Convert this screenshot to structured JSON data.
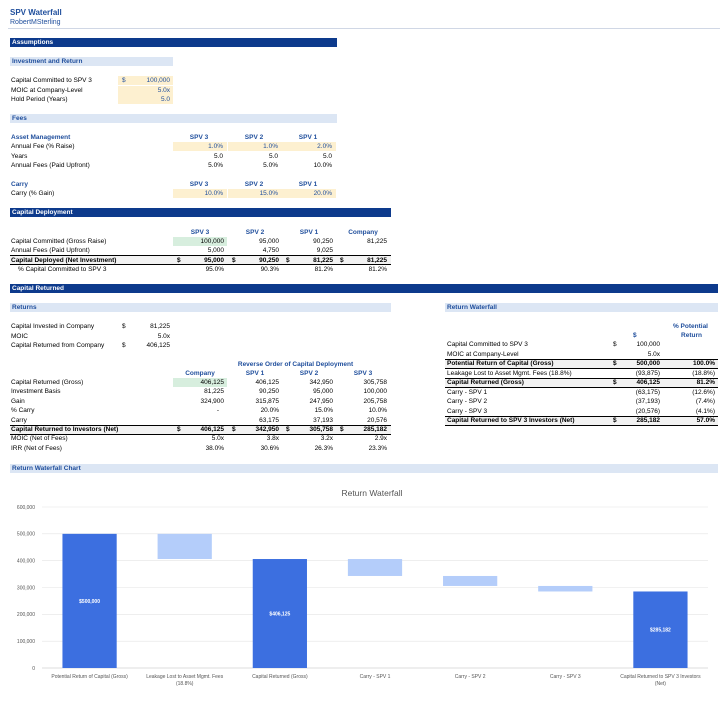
{
  "sheet": {
    "title": "SPV Waterfall",
    "author": "RobertMSterling"
  },
  "assumptions": {
    "header": "Assumptions"
  },
  "investment": {
    "header": "Investment and Return",
    "rows": [
      {
        "label": "Capital Committed to SPV 3",
        "cur": "$",
        "value": "100,000"
      },
      {
        "label": "MOIC at Company-Level",
        "cur": "",
        "value": "5.0x"
      },
      {
        "label": "Hold Period (Years)",
        "cur": "",
        "value": "5.0"
      }
    ]
  },
  "fees": {
    "header": "Fees",
    "am_title": "Asset Management",
    "cols": [
      "SPV 3",
      "SPV 2",
      "SPV 1"
    ],
    "am_rows": [
      {
        "label": "Annual Fee (% Raise)",
        "v": [
          "1.0%",
          "1.0%",
          "2.0%"
        ]
      },
      {
        "label": "Years",
        "v": [
          "5.0",
          "5.0",
          "5.0"
        ]
      },
      {
        "label": "Annual Fees (Paid Upfront)",
        "v": [
          "5.0%",
          "5.0%",
          "10.0%"
        ]
      }
    ],
    "carry_title": "Carry",
    "carry_rows": [
      {
        "label": "Carry (% Gain)",
        "v": [
          "10.0%",
          "15.0%",
          "20.0%"
        ]
      }
    ]
  },
  "deployment": {
    "header": "Capital Deployment",
    "cols": [
      "SPV 3",
      "SPV 2",
      "SPV 1",
      "Company"
    ],
    "rows": [
      {
        "label": "Capital Committed (Gross Raise)",
        "v": [
          "100,000",
          "95,000",
          "90,250",
          "81,225"
        ]
      },
      {
        "label": "Annual Fees (Paid Upfront)",
        "v": [
          "5,000",
          "4,750",
          "9,025",
          ""
        ]
      },
      {
        "label": "Capital Deployed (Net Investment)",
        "v": [
          "95,000",
          "90,250",
          "81,225",
          "81,225"
        ]
      },
      {
        "label": "% Capital Committed to SPV 3",
        "v": [
          "95.0%",
          "90.3%",
          "81.2%",
          "81.2%"
        ]
      }
    ]
  },
  "capital_returned": {
    "header": "Capital Returned"
  },
  "returns": {
    "header": "Returns",
    "top_rows": [
      {
        "label": "Capital Invested in Company",
        "cur": "$",
        "value": "81,225"
      },
      {
        "label": "MOIC",
        "cur": "",
        "value": "5.0x"
      },
      {
        "label": "Capital Returned from Company",
        "cur": "$",
        "value": "406,125"
      }
    ],
    "reverse_label": "Reverse Order of Capital Deployment",
    "cols": [
      "Company",
      "SPV 1",
      "SPV 2",
      "SPV 3"
    ],
    "rows": [
      {
        "label": "Capital Returned (Gross)",
        "v": [
          "406,125",
          "406,125",
          "342,950",
          "305,758"
        ]
      },
      {
        "label": "Investment Basis",
        "v": [
          "81,225",
          "90,250",
          "95,000",
          "100,000"
        ]
      },
      {
        "label": "Gain",
        "v": [
          "324,900",
          "315,875",
          "247,950",
          "205,758"
        ]
      },
      {
        "label": "% Carry",
        "v": [
          "-",
          "20.0%",
          "15.0%",
          "10.0%"
        ]
      },
      {
        "label": "Carry",
        "v": [
          "",
          "63,175",
          "37,193",
          "20,576"
        ]
      },
      {
        "label": "Capital Returned to Investors (Net)",
        "v": [
          "406,125",
          "342,950",
          "305,758",
          "285,182"
        ]
      },
      {
        "label": "MOIC (Net of Fees)",
        "v": [
          "5.0x",
          "3.8x",
          "3.2x",
          "2.9x"
        ]
      },
      {
        "label": "IRR (Net of Fees)",
        "v": [
          "38.0%",
          "30.6%",
          "26.3%",
          "23.3%"
        ]
      }
    ]
  },
  "waterfall": {
    "header": "Return Waterfall",
    "col_dollar": "$",
    "col_pct_1": "% Potential",
    "col_pct_2": "Return",
    "rows": [
      {
        "label": "Capital Committed to SPV 3",
        "cur": "$",
        "value": "100,000",
        "pct": ""
      },
      {
        "label": "MOIC at Company-Level",
        "cur": "",
        "value": "5.0x",
        "pct": ""
      },
      {
        "label": "Potential Return of Capital (Gross)",
        "cur": "$",
        "value": "500,000",
        "pct": "100.0%"
      },
      {
        "label": "Leakage Lost to Asset Mgmt. Fees (18.8%)",
        "cur": "",
        "value": "(93,875)",
        "pct": "(18.8%)"
      },
      {
        "label": "Capital Returned (Gross)",
        "cur": "$",
        "value": "406,125",
        "pct": "81.2%"
      },
      {
        "label": "Carry - SPV 1",
        "cur": "",
        "value": "(63,175)",
        "pct": "(12.6%)"
      },
      {
        "label": "Carry - SPV 2",
        "cur": "",
        "value": "(37,193)",
        "pct": "(7.4%)"
      },
      {
        "label": "Carry - SPV 3",
        "cur": "",
        "value": "(20,576)",
        "pct": "(4.1%)"
      },
      {
        "label": "Capital Returned to SPV 3 Investors (Net)",
        "cur": "$",
        "value": "285,182",
        "pct": "57.0%"
      }
    ]
  },
  "chart_section": {
    "header": "Return Waterfall Chart"
  },
  "chart_data": {
    "type": "bar",
    "subtype": "waterfall",
    "title": "Return Waterfall",
    "categories": [
      [
        "Potential Return of Capital (Gross)"
      ],
      [
        "Leakage Lost to Asset Mgmt. Fees",
        "(18.8%)"
      ],
      [
        "Capital Returned (Gross)"
      ],
      [
        "Carry - SPV 1"
      ],
      [
        "Carry - SPV 2"
      ],
      [
        "Carry - SPV 3"
      ],
      [
        "Capital Returned to SPV 3 Investors",
        "(Net)"
      ]
    ],
    "bars": [
      {
        "kind": "total",
        "low": 0,
        "high": 500000,
        "label": "$500,000"
      },
      {
        "kind": "decrease",
        "low": 406125,
        "high": 500000,
        "label": ""
      },
      {
        "kind": "total",
        "low": 0,
        "high": 406125,
        "label": "$406,125"
      },
      {
        "kind": "decrease",
        "low": 342950,
        "high": 406125,
        "label": ""
      },
      {
        "kind": "decrease",
        "low": 305758,
        "high": 342950,
        "label": ""
      },
      {
        "kind": "decrease",
        "low": 285182,
        "high": 305758,
        "label": ""
      },
      {
        "kind": "total",
        "low": 0,
        "high": 285182,
        "label": "$285,182"
      }
    ],
    "yticks": [
      "0",
      "100,000",
      "200,000",
      "300,000",
      "400,000",
      "500,000",
      "600,000"
    ],
    "ylim": [
      0,
      600000
    ],
    "colors": {
      "total": "#3c6fe0",
      "decrease": "#b4cdfa"
    },
    "grid": true
  }
}
